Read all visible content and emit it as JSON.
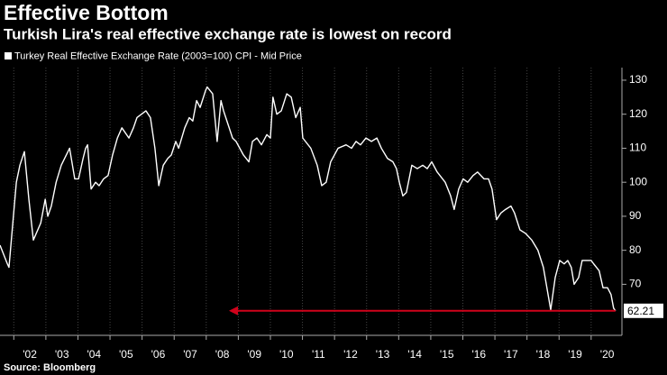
{
  "chart_data": {
    "type": "line",
    "title": "Effective Bottom",
    "subtitle": "Turkish Lira's real effective exchange rate is lowest on record",
    "source": "Source: Bloomberg",
    "series": [
      {
        "name": "Turkey Real Effective Exchange Rate (2003=100) CPI - Mid Price",
        "color": "#ffffff",
        "x": [
          2001.57,
          2001.8,
          2001.85,
          2002.08,
          2002.19,
          2002.33,
          2002.47,
          2002.61,
          2002.84,
          2002.98,
          2003.06,
          2003.17,
          2003.32,
          2003.48,
          2003.74,
          2003.9,
          2004.02,
          2004.16,
          2004.24,
          2004.3,
          2004.41,
          2004.55,
          2004.66,
          2004.8,
          2004.94,
          2005.08,
          2005.23,
          2005.37,
          2005.59,
          2005.73,
          2005.84,
          2005.98,
          2006.12,
          2006.26,
          2006.4,
          2006.52,
          2006.66,
          2006.8,
          2006.91,
          2007.05,
          2007.14,
          2007.33,
          2007.47,
          2007.58,
          2007.7,
          2007.81,
          2007.98,
          2008.03,
          2008.2,
          2008.34,
          2008.46,
          2008.54,
          2008.68,
          2008.82,
          2008.93,
          2009.16,
          2009.33,
          2009.44,
          2009.58,
          2009.72,
          2009.89,
          2010.0,
          2010.08,
          2010.2,
          2010.34,
          2010.51,
          2010.65,
          2010.79,
          2010.93,
          2011.01,
          2011.26,
          2011.46,
          2011.6,
          2011.74,
          2011.88,
          2012.11,
          2012.36,
          2012.53,
          2012.67,
          2012.81,
          2012.98,
          2013.15,
          2013.32,
          2013.46,
          2013.65,
          2013.82,
          2013.93,
          2014.02,
          2014.13,
          2014.24,
          2014.41,
          2014.58,
          2014.75,
          2014.89,
          2015.03,
          2015.2,
          2015.45,
          2015.62,
          2015.73,
          2015.87,
          2016.01,
          2016.15,
          2016.32,
          2016.46,
          2016.66,
          2016.8,
          2016.91,
          2017.05,
          2017.19,
          2017.33,
          2017.5,
          2017.61,
          2017.78,
          2017.95,
          2018.15,
          2018.34,
          2018.51,
          2018.74,
          2018.88,
          2019.02,
          2019.16,
          2019.27,
          2019.38,
          2019.47,
          2019.61,
          2019.72,
          2019.89,
          2020.0,
          2020.08,
          2020.25,
          2020.37,
          2020.51,
          2020.62,
          2020.7,
          2020.76
        ],
        "values": [
          81.5,
          76,
          75,
          100,
          105,
          109,
          95,
          83,
          88,
          95,
          90,
          93,
          100,
          105,
          110,
          101,
          101,
          107,
          110,
          111,
          98,
          100,
          99,
          101,
          102,
          108,
          113,
          116,
          113,
          116,
          119,
          120,
          121,
          119,
          110,
          99,
          105,
          107,
          108,
          112,
          110,
          116,
          119,
          118,
          124,
          122,
          127,
          128,
          126,
          112,
          124,
          121,
          117,
          113,
          112,
          108,
          106,
          112,
          113,
          111,
          114,
          113,
          125,
          120,
          121,
          126,
          125,
          119,
          122,
          113,
          110,
          105,
          99,
          100,
          106,
          110,
          111,
          110,
          112,
          111,
          113,
          112,
          113,
          110,
          107,
          106,
          104,
          100,
          96,
          97,
          105,
          104,
          105,
          104,
          106,
          103,
          100,
          96,
          92,
          98,
          101,
          100,
          102,
          103,
          101,
          101,
          98,
          89,
          91,
          92,
          93,
          91,
          86,
          85,
          83,
          80,
          75,
          62.5,
          72,
          77,
          76,
          77,
          75,
          70,
          72,
          77,
          77,
          77,
          76,
          74,
          69,
          69,
          67,
          63,
          62.21
        ]
      }
    ],
    "xlim": [
      2001.57,
      2020.96
    ],
    "xticks": [
      {
        "value": 2002,
        "label": "'02"
      },
      {
        "value": 2003,
        "label": "'03"
      },
      {
        "value": 2004,
        "label": "'04"
      },
      {
        "value": 2005,
        "label": "'05"
      },
      {
        "value": 2006,
        "label": "'06"
      },
      {
        "value": 2007,
        "label": "'07"
      },
      {
        "value": 2008,
        "label": "'08"
      },
      {
        "value": 2009,
        "label": "'09"
      },
      {
        "value": 2010,
        "label": "'10"
      },
      {
        "value": 2011,
        "label": "'11"
      },
      {
        "value": 2012,
        "label": "'12"
      },
      {
        "value": 2013,
        "label": "'13"
      },
      {
        "value": 2014,
        "label": "'14"
      },
      {
        "value": 2015,
        "label": "'15"
      },
      {
        "value": 2016,
        "label": "'16"
      },
      {
        "value": 2017,
        "label": "'17"
      },
      {
        "value": 2018,
        "label": "'18"
      },
      {
        "value": 2019,
        "label": "'19"
      },
      {
        "value": 2020,
        "label": "'20"
      }
    ],
    "ylim": [
      55,
      133.7
    ],
    "yticks": [
      70,
      80,
      90,
      100,
      110,
      120,
      130
    ],
    "annotation_color": "#d0021b",
    "grid": true
  }
}
